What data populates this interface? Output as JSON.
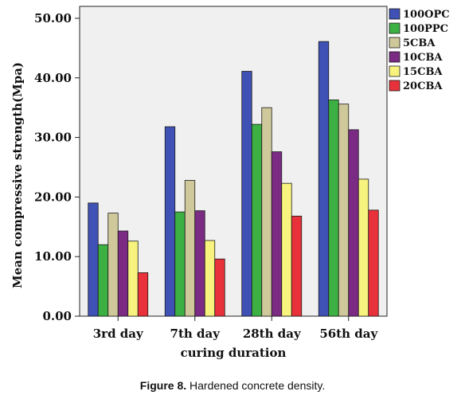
{
  "caption": {
    "label": "Figure 8.",
    "text": "Hardened concrete density."
  },
  "chart_data": {
    "type": "bar",
    "title": "",
    "xlabel": "curing duration",
    "ylabel": "Mean compressive strength(Mpa)",
    "ylim": [
      0,
      52
    ],
    "yticks": [
      "0.00",
      "10.00",
      "20.00",
      "30.00",
      "40.00",
      "50.00"
    ],
    "grid": false,
    "legend_position": "top-right",
    "categories": [
      "3rd day",
      "7th day",
      "28th day",
      "56th day"
    ],
    "series": [
      {
        "name": "100OPC",
        "color": "#3f51b5",
        "values": [
          19.0,
          31.8,
          41.1,
          46.1
        ]
      },
      {
        "name": "100PPC",
        "color": "#3cb043",
        "values": [
          12.0,
          17.5,
          32.2,
          36.3
        ]
      },
      {
        "name": "5CBA",
        "color": "#cfc89a",
        "values": [
          17.3,
          22.8,
          35.0,
          35.6
        ]
      },
      {
        "name": "10CBA",
        "color": "#7b2b84",
        "values": [
          14.3,
          17.7,
          27.6,
          31.3
        ]
      },
      {
        "name": "15CBA",
        "color": "#f7f37e",
        "values": [
          12.6,
          12.7,
          22.3,
          23.0
        ]
      },
      {
        "name": "20CBA",
        "color": "#e8313a",
        "values": [
          7.3,
          9.6,
          16.8,
          17.8
        ]
      }
    ]
  }
}
